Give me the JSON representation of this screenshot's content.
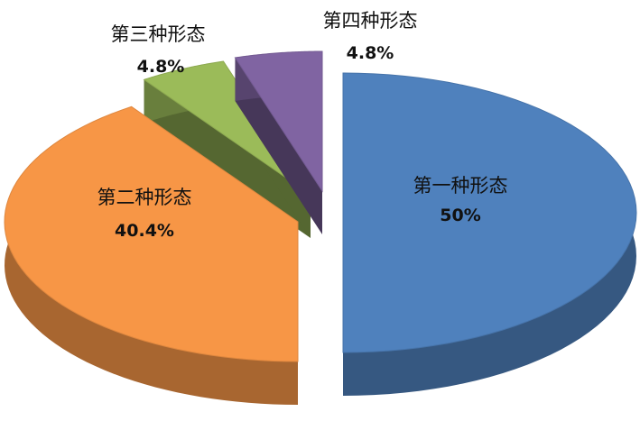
{
  "chart_data": {
    "type": "pie",
    "style": "3d-exploded",
    "title": "",
    "slices": [
      {
        "label": "第一种形态",
        "value": 50,
        "value_label": "50%",
        "color": "#4f81bd"
      },
      {
        "label": "第二种形态",
        "value": 40.4,
        "value_label": "40.4%",
        "color": "#f79646"
      },
      {
        "label": "第三种形态",
        "value": 4.8,
        "value_label": "4.8%",
        "color": "#9bbb59"
      },
      {
        "label": "第四种形态",
        "value": 4.8,
        "value_label": "4.8%",
        "color": "#8064a2"
      }
    ]
  }
}
